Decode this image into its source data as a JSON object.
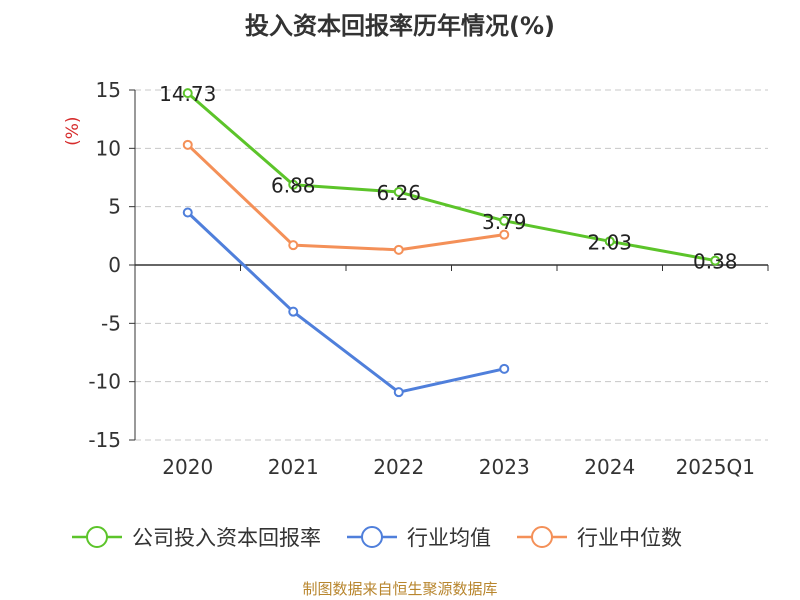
{
  "chart_data": {
    "type": "line",
    "title": "投入资本回报率历年情况(%)",
    "ylabel": "(%)",
    "xlabel": "",
    "categories": [
      "2020",
      "2021",
      "2022",
      "2023",
      "2024",
      "2025Q1"
    ],
    "ylim": [
      -15,
      15
    ],
    "yticks": [
      "15",
      "10",
      "5",
      "0",
      "-5",
      "-10",
      "-15"
    ],
    "ytick_values": [
      15,
      10,
      5,
      0,
      -5,
      -10,
      -15
    ],
    "grid": true,
    "legend_position": "bottom",
    "series": [
      {
        "name": "公司投入资本回报率",
        "color": "#5cc42a",
        "values": [
          14.73,
          6.88,
          6.26,
          3.79,
          2.03,
          0.38
        ],
        "labels": [
          "14.73",
          "6.88",
          "6.26",
          "3.79",
          "2.03",
          "0.38"
        ]
      },
      {
        "name": "行业均值",
        "color": "#4f7fdb",
        "values": [
          4.5,
          -4.0,
          -10.9,
          -8.9,
          null,
          null
        ]
      },
      {
        "name": "行业中位数",
        "color": "#f49058",
        "values": [
          10.3,
          1.7,
          1.3,
          2.6,
          null,
          null
        ]
      }
    ]
  },
  "source": "制图数据来自恒生聚源数据库"
}
